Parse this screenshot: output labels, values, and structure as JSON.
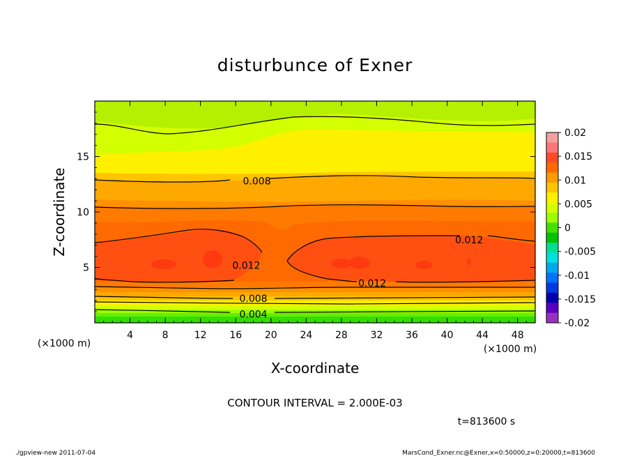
{
  "chart_data": {
    "type": "contour",
    "title": "disturbunce of Exner",
    "xlabel": "X-coordinate",
    "ylabel": "Z-coordinate",
    "x_unit": "(×1000 m)",
    "y_unit": "(×1000 m)",
    "xlim": [
      0,
      50
    ],
    "ylim": [
      0,
      20
    ],
    "xticks": [
      4,
      8,
      12,
      16,
      20,
      24,
      28,
      32,
      36,
      40,
      44,
      48
    ],
    "yticks": [
      5,
      10,
      15
    ],
    "colorbar": {
      "range": [
        -0.02,
        0.02
      ],
      "labels": [
        "0.02",
        "0.015",
        "0.01",
        "0.005",
        "0",
        "-0.005",
        "-0.01",
        "-0.015",
        "-0.02"
      ],
      "colors": [
        "#f2a0a0",
        "#ff7777",
        "#ff4a2a",
        "#ff6a00",
        "#ff9a00",
        "#ffc400",
        "#fff000",
        "#d4ff00",
        "#9cff00",
        "#44e000",
        "#00c400",
        "#00e090",
        "#00e0e0",
        "#00a8f0",
        "#0070ff",
        "#0038e0",
        "#0000b0",
        "#5a00c0",
        "#9a30c0"
      ]
    },
    "contour_labels": [
      {
        "text": "0.008",
        "x": 18.4,
        "z": 12.8
      },
      {
        "text": "0.012",
        "x": 42.5,
        "z": 7.5
      },
      {
        "text": "0.012",
        "x": 17.2,
        "z": 5.2
      },
      {
        "text": "0.012",
        "x": 31.5,
        "z": 3.6
      },
      {
        "text": "0.008",
        "x": 18.0,
        "z": 2.2
      },
      {
        "text": "0.004",
        "x": 18.0,
        "z": 0.8
      }
    ],
    "contour_interval": "CONTOUR INTERVAL = 2.000E-03",
    "time": "t=813600 s"
  },
  "footer": {
    "left": "./gpview-new   2011-07-04",
    "right": "MarsCond_Exner.nc@Exner,x=0:50000,z=0:20000,t=813600"
  }
}
